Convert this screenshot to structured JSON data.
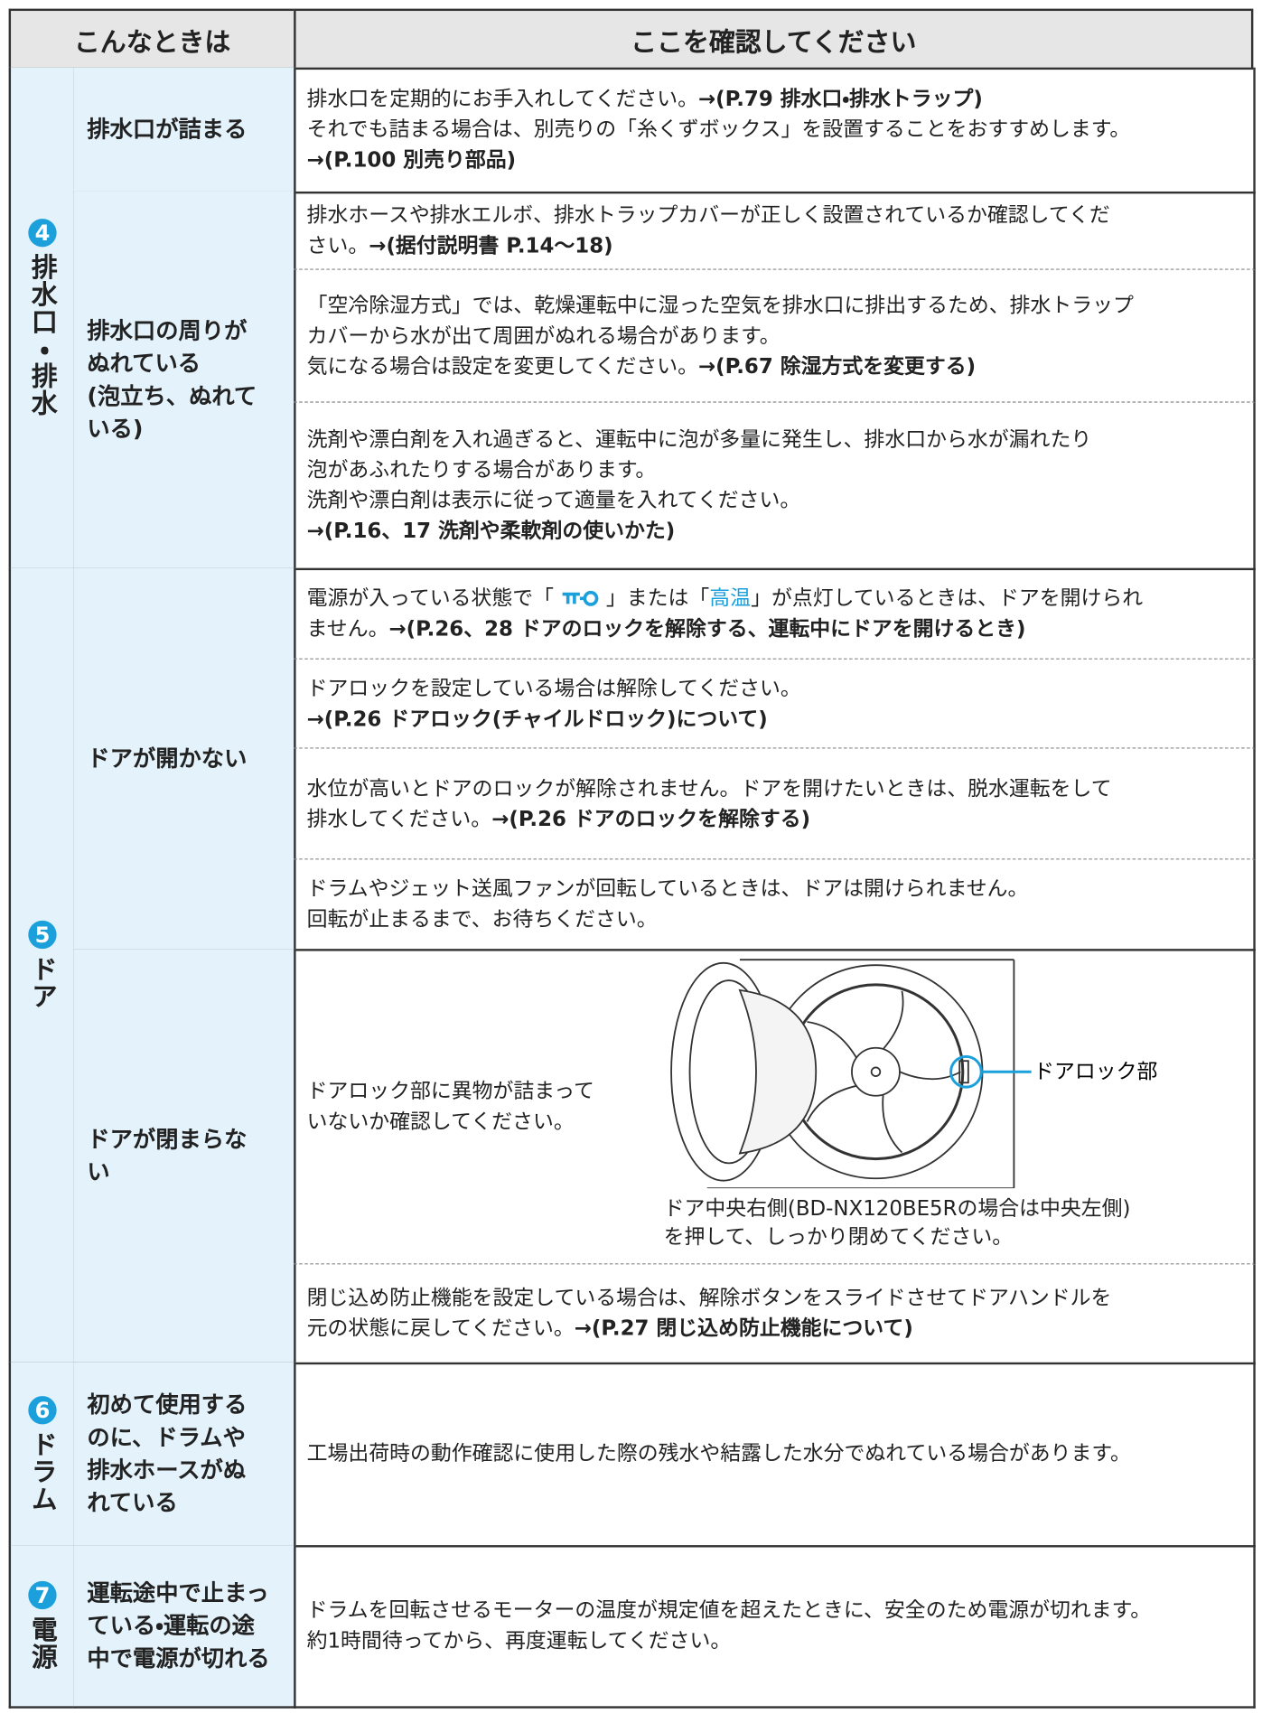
{
  "header": {
    "col1": "こんなときは",
    "col2": "ここを確認してください"
  },
  "sections": [
    {
      "number": "4",
      "label": "排水口・排水",
      "rows": [
        {
          "symptom": [
            "排水口が詰まる"
          ],
          "checks": [
            {
              "lines": [
                [
                  {
                    "text": "排水口を定期的にお手入れしてください。"
                  },
                  {
                    "bold": "→(P.79 排水口・排水トラップ)"
                  }
                ],
                [
                  {
                    "text": "それでも詰まる場合は、別売りの「糸くずボックス」を設置することをおすすめします。"
                  }
                ],
                [
                  {
                    "bold": "→(P.100 別売り部品)"
                  }
                ]
              ]
            }
          ]
        },
        {
          "symptom": [
            "排水口の周りが",
            "ぬれている",
            "(泡立ち、ぬれて",
            "いる)"
          ],
          "checks": [
            {
              "lines": [
                [
                  {
                    "text": "排水ホースや排水エルボ、排水トラップカバーが正しく設置されているか確認してくだ"
                  }
                ],
                [
                  {
                    "text": "さい。"
                  },
                  {
                    "bold": "→(据付説明書 P.14～18)"
                  }
                ]
              ]
            },
            {
              "lines": [
                [
                  {
                    "text": "「空冷除湿方式」では、乾燥運転中に湿った空気を排水口に排出するため、排水トラップ"
                  }
                ],
                [
                  {
                    "text": "カバーから水が出て周囲がぬれる場合があります。"
                  }
                ],
                [
                  {
                    "text": "気になる場合は設定を変更してください。"
                  },
                  {
                    "bold": "→(P.67 除湿方式を変更する)"
                  }
                ]
              ]
            },
            {
              "lines": [
                [
                  {
                    "text": "洗剤や漂白剤を入れ過ぎると、運転中に泡が多量に発生し、排水口から水が漏れたり"
                  }
                ],
                [
                  {
                    "text": "泡があふれたりする場合があります。"
                  }
                ],
                [
                  {
                    "text": "洗剤や漂白剤は表示に従って適量を入れてください。"
                  }
                ],
                [
                  {
                    "bold": "→(P.16、17 洗剤や柔軟剤の使いかた)"
                  }
                ]
              ]
            }
          ]
        }
      ]
    },
    {
      "number": "5",
      "label": "ドア",
      "rows": [
        {
          "symptom": [
            "ドアが開かない"
          ],
          "checks": [
            {
              "lines": [
                [
                  {
                    "text": "電源が入っている状態で「"
                  },
                  {
                    "text": "」または「"
                  },
                  {
                    "highlight": "高温"
                  },
                  {
                    "text": "」が点灯しているときは、ドアを開けられ"
                  }
                ],
                [
                  {
                    "text": "ません。"
                  },
                  {
                    "bold": "→(P.26、28 ドアのロックを解除する、運転中にドアを開けるとき)"
                  }
                ]
              ]
            },
            {
              "lines": [
                [
                  {
                    "text": "ドアロックを設定している場合は解除してください。"
                  }
                ],
                [
                  {
                    "bold": "→(P.26 ドアロック(チャイルドロック)について)"
                  }
                ]
              ]
            },
            {
              "lines": [
                [
                  {
                    "text": "水位が高いとドアのロックが解除されません。ドアを開けたいときは、脱水運転をして"
                  }
                ],
                [
                  {
                    "text": "排水してください。"
                  },
                  {
                    "bold": "→(P.26 ドアのロックを解除する)"
                  }
                ]
              ]
            },
            {
              "lines": [
                [
                  {
                    "text": "ドラムやジェット送風ファンが回転しているときは、ドアは開けられません。"
                  }
                ],
                [
                  {
                    "text": "回転が止まるまで、お待ちください。"
                  }
                ]
              ]
            }
          ]
        },
        {
          "symptom": [
            "ドアが閉まらな",
            "い"
          ],
          "checks": [
            {
              "lines": [
                [
                  {
                    "text": "ドアロック部に異物が詰まって"
                  }
                ],
                [
                  {
                    "text": "いないか確認してください。"
                  }
                ]
              ],
              "figure": {
                "callout": "ドアロック部",
                "caption": [
                  "ドア中央右側(BD-NX120BE5Rの場合は中央左側)",
                  "を押して、しっかり閉めてください。"
                ]
              }
            },
            {
              "lines": [
                [
                  {
                    "text": "閉じ込め防止機能を設定している場合は、解除ボタンをスライドさせてドアハンドルを"
                  }
                ],
                [
                  {
                    "text": "元の状態に戻してください。"
                  },
                  {
                    "bold": "→(P.27 閉じ込め防止機能について)"
                  }
                ]
              ]
            }
          ]
        }
      ]
    },
    {
      "number": "6",
      "label": "ドラム",
      "rows": [
        {
          "symptom": [
            "初めて使用する",
            "のに、ドラムや",
            "排水ホースがぬ",
            "れている"
          ],
          "checks": [
            {
              "lines": [
                [
                  {
                    "text": "工場出荷時の動作確認に使用した際の残水や結露した水分でぬれている場合があります。"
                  }
                ]
              ]
            }
          ]
        }
      ]
    },
    {
      "number": "7",
      "label": "電源",
      "rows": [
        {
          "symptom": [
            "運転途中で止まっ",
            "ている・運転の途",
            "中で電源が切れる"
          ],
          "checks": [
            {
              "lines": [
                [
                  {
                    "text": "ドラムを回転させるモーターの温度が規定値を超えたときに、安全のため電源が切れます。"
                  }
                ],
                [
                  {
                    "text": "約1時間待ってから、再度運転してください。"
                  }
                ]
              ]
            }
          ]
        }
      ]
    }
  ]
}
